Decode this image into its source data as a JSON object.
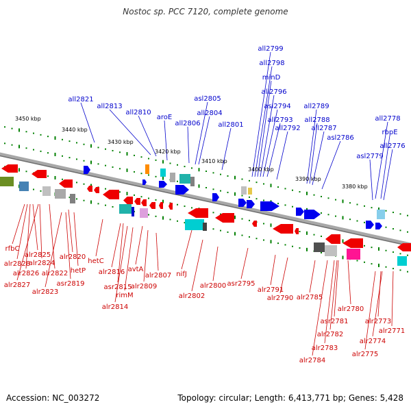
{
  "title": "Nostoc sp. PCC 7120, complete genome",
  "footer": {
    "accession": "Accession: NC_003272",
    "summary": "Topology: circular; Length: 6,413,771 bp; Genes: 5,428"
  },
  "colors": {
    "forward_label": "#0000cc",
    "reverse_label": "#cc0000",
    "backbone": "#808080",
    "tick": "#008000"
  },
  "kbp_labels": [
    "3450 kbp",
    "3440 kbp",
    "3430 kbp",
    "3420 kbp",
    "3410 kbp",
    "3400 kbp",
    "3390 kbp",
    "3380 kbp"
  ],
  "forward_genes": [
    "all2799",
    "all2798",
    "minD",
    "all2796",
    "asl2805",
    "asl2794",
    "all2789",
    "all2821",
    "all2813",
    "all2804",
    "all2793",
    "all2788",
    "all2778",
    "all2810",
    "aroE",
    "all2806",
    "all2801",
    "all2792",
    "all2787",
    "rbpE",
    "asl2786",
    "all2776",
    "asl2779"
  ],
  "reverse_genes": [
    "rfbC",
    "alr2825",
    "alr2828",
    "alr2824",
    "alr2826",
    "alr2820",
    "hetP",
    "alr2822",
    "hetC",
    "alr2827",
    "asr2819",
    "alr2823",
    "avtA",
    "alr2816",
    "alr2807",
    "nifJ",
    "asr2815",
    "alr2809",
    "alr2800",
    "asr2795",
    "alr2791",
    "rimM",
    "alr2802",
    "alr2790",
    "alr2785",
    "alr2780",
    "alr2814",
    "asr2781",
    "alr2773",
    "alr2771",
    "alr2782",
    "alr2774",
    "alr2783",
    "alr2775",
    "alr2784"
  ]
}
